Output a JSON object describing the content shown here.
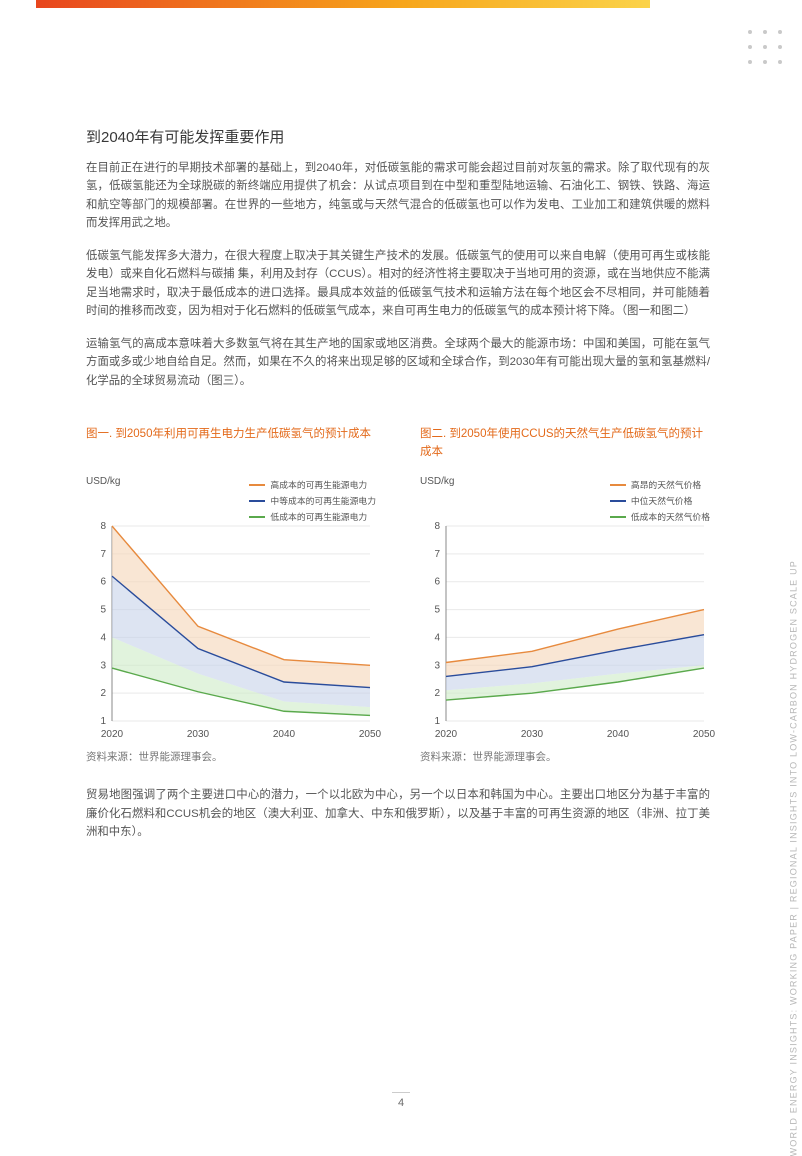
{
  "page_number": "4",
  "side_text": "WORLD ENERGY INSIGHTS: WORKING PAPER | REGIONAL INSIGHTS INTO LOW-CARBON HYDROGEN SCALE UP",
  "heading": "到2040年有可能发挥重要作用",
  "paragraphs": [
    "在目前正在进行的早期技术部署的基础上，到2040年，对低碳氢能的需求可能会超过目前对灰氢的需求。除了取代现有的灰氢，低碳氢能还为全球脱碳的新终端应用提供了机会：从试点项目到在中型和重型陆地运输、石油化工、钢铁、铁路、海运和航空等部门的规模部署。在世界的一些地方，纯氢或与天然气混合的低碳氢也可以作为发电、工业加工和建筑供暖的燃料而发挥用武之地。",
    "低碳氢气能发挥多大潜力，在很大程度上取决于其关键生产技术的发展。低碳氢气的使用可以来自电解（使用可再生或核能发电）或来自化石燃料与碳捕 集，利用及封存（CCUS）。相对的经济性将主要取决于当地可用的资源，或在当地供应不能满足当地需求时，取决于最低成本的进口选择。最具成本效益的低碳氢气技术和运输方法在每个地区会不尽相同，并可能随着时间的推移而改变，因为相对于化石燃料的低碳氢气成本，来自可再生电力的低碳氢气的成本预计将下降。（图一和图二）",
    "运输氢气的高成本意味着大多数氢气将在其生产地的国家或地区消费。全球两个最大的能源市场：中国和美国，可能在氢气方面或多或少地自给自足。然而，如果在不久的将来出现足够的区域和全球合作，到2030年有可能出现大量的氢和氢基燃料/化学品的全球贸易流动（图三）。"
  ],
  "bottom_paragraph": "贸易地图强调了两个主要进口中心的潜力，一个以北欧为中心，另一个以日本和韩国为中心。主要出口地区分为基于丰富的廉价化石燃料和CCUS机会的地区（澳大利亚、加拿大、中东和俄罗斯），以及基于丰富的可再生资源的地区（非洲、拉丁美洲和中东）。",
  "chart1": {
    "title": "图一. 到2050年利用可再生电力生产低碳氢气的预计成本",
    "type": "line_band",
    "ylabel": "USD/kg",
    "ylim": [
      1,
      8
    ],
    "ytick_step": 1,
    "x_labels": [
      "2020",
      "2030",
      "2040",
      "2050"
    ],
    "x_positions": [
      0,
      1,
      2,
      3
    ],
    "source": "资料来源：世界能源理事会。",
    "background_color": "#ffffff",
    "grid_color": "#e9e9e9",
    "axis_color": "#888888",
    "label_color": "#555555",
    "label_fontsize": 10,
    "series": [
      {
        "name": "高成本的可再生能源电力",
        "color": "#e78a3e",
        "fill": "#f6d9bd",
        "fill_opacity": 0.65,
        "line": [
          8.0,
          4.4,
          3.2,
          3.0
        ],
        "band_top": [
          8.0,
          4.4,
          3.2,
          3.0
        ],
        "band_bot": [
          6.2,
          3.6,
          2.4,
          2.2
        ]
      },
      {
        "name": "中等成本的可再生能源电力",
        "color": "#2a4c9b",
        "fill": "#c7d2ea",
        "fill_opacity": 0.6,
        "line": [
          6.2,
          3.6,
          2.4,
          2.2
        ],
        "band_top": [
          6.2,
          3.6,
          2.4,
          2.2
        ],
        "band_bot": [
          4.0,
          2.7,
          1.7,
          1.5
        ]
      },
      {
        "name": "低成本的可再生能源电力",
        "color": "#5aa94c",
        "fill": "#cdebc6",
        "fill_opacity": 0.6,
        "line": [
          2.9,
          2.05,
          1.35,
          1.2
        ],
        "band_top": [
          4.0,
          2.7,
          1.7,
          1.5
        ],
        "band_bot": [
          2.9,
          2.05,
          1.35,
          1.2
        ]
      }
    ]
  },
  "chart2": {
    "title": "图二. 到2050年使用CCUS的天然气生产低碳氢气的预计成本",
    "type": "line_band",
    "ylabel": "USD/kg",
    "ylim": [
      1,
      8
    ],
    "ytick_step": 1,
    "x_labels": [
      "2020",
      "2030",
      "2040",
      "2050"
    ],
    "x_positions": [
      0,
      1,
      2,
      3
    ],
    "source": "资料来源：世界能源理事会。",
    "background_color": "#ffffff",
    "grid_color": "#e9e9e9",
    "axis_color": "#888888",
    "label_color": "#555555",
    "label_fontsize": 10,
    "series": [
      {
        "name": "高昂的天然气价格",
        "color": "#e78a3e",
        "fill": "#f6d9bd",
        "fill_opacity": 0.65,
        "line": [
          3.1,
          3.5,
          4.3,
          5.0
        ],
        "band_top": [
          3.1,
          3.5,
          4.3,
          5.0
        ],
        "band_bot": [
          2.6,
          2.95,
          3.55,
          4.1
        ]
      },
      {
        "name": "中位天然气价格",
        "color": "#2a4c9b",
        "fill": "#c7d2ea",
        "fill_opacity": 0.6,
        "line": [
          2.6,
          2.95,
          3.55,
          4.1
        ],
        "band_top": [
          2.6,
          2.95,
          3.55,
          4.1
        ],
        "band_bot": [
          2.1,
          2.35,
          2.7,
          3.0
        ]
      },
      {
        "name": "低成本的天然气价格",
        "color": "#5aa94c",
        "fill": "#cdebc6",
        "fill_opacity": 0.6,
        "line": [
          1.75,
          2.0,
          2.4,
          2.9
        ],
        "band_top": [
          2.1,
          2.35,
          2.7,
          3.0
        ],
        "band_bot": [
          1.75,
          2.0,
          2.4,
          2.9
        ]
      }
    ]
  }
}
